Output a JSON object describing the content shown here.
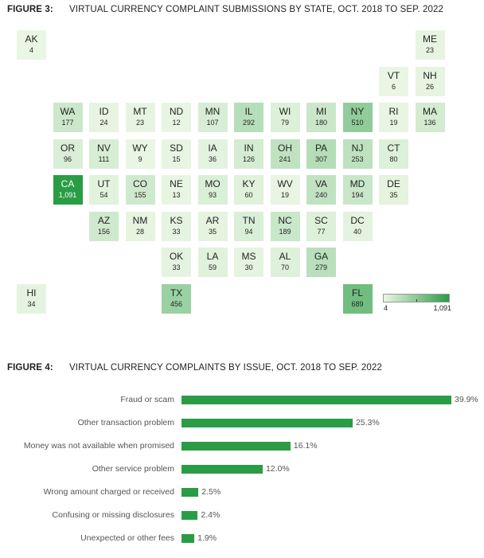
{
  "figure3": {
    "number": "FIGURE 3:",
    "title": "VIRTUAL CURRENCY COMPLAINT SUBMISSIONS  BY STATE, OCT. 2018 TO SEP. 2022",
    "legend": {
      "min": "4",
      "max": "1,091",
      "color_low": "#eaf6e4",
      "color_high": "#2a9c45"
    }
  },
  "chart_data": [
    {
      "type": "tile_map",
      "title": "VIRTUAL CURRENCY COMPLAINT SUBMISSIONS  BY STATE, OCT. 2018 TO SEP. 2022",
      "value_range": [
        4,
        1091
      ],
      "states": [
        {
          "abbr": "AK",
          "label": "4",
          "value": 4,
          "row": 0,
          "col": 0
        },
        {
          "abbr": "ME",
          "label": "23",
          "value": 23,
          "row": 0,
          "col": 11
        },
        {
          "abbr": "VT",
          "label": "6",
          "value": 6,
          "row": 1,
          "col": 10
        },
        {
          "abbr": "NH",
          "label": "26",
          "value": 26,
          "row": 1,
          "col": 11
        },
        {
          "abbr": "WA",
          "label": "177",
          "value": 177,
          "row": 2,
          "col": 1
        },
        {
          "abbr": "ID",
          "label": "24",
          "value": 24,
          "row": 2,
          "col": 2
        },
        {
          "abbr": "MT",
          "label": "23",
          "value": 23,
          "row": 2,
          "col": 3
        },
        {
          "abbr": "ND",
          "label": "12",
          "value": 12,
          "row": 2,
          "col": 4
        },
        {
          "abbr": "MN",
          "label": "107",
          "value": 107,
          "row": 2,
          "col": 5
        },
        {
          "abbr": "IL",
          "label": "292",
          "value": 292,
          "row": 2,
          "col": 6
        },
        {
          "abbr": "WI",
          "label": "79",
          "value": 79,
          "row": 2,
          "col": 7
        },
        {
          "abbr": "MI",
          "label": "180",
          "value": 180,
          "row": 2,
          "col": 8
        },
        {
          "abbr": "NY",
          "label": "510",
          "value": 510,
          "row": 2,
          "col": 9
        },
        {
          "abbr": "RI",
          "label": "19",
          "value": 19,
          "row": 2,
          "col": 10
        },
        {
          "abbr": "MA",
          "label": "136",
          "value": 136,
          "row": 2,
          "col": 11
        },
        {
          "abbr": "OR",
          "label": "96",
          "value": 96,
          "row": 3,
          "col": 1
        },
        {
          "abbr": "NV",
          "label": "111",
          "value": 111,
          "row": 3,
          "col": 2
        },
        {
          "abbr": "WY",
          "label": "9",
          "value": 9,
          "row": 3,
          "col": 3
        },
        {
          "abbr": "SD",
          "label": "15",
          "value": 15,
          "row": 3,
          "col": 4
        },
        {
          "abbr": "IA",
          "label": "36",
          "value": 36,
          "row": 3,
          "col": 5
        },
        {
          "abbr": "IN",
          "label": "126",
          "value": 126,
          "row": 3,
          "col": 6
        },
        {
          "abbr": "OH",
          "label": "241",
          "value": 241,
          "row": 3,
          "col": 7
        },
        {
          "abbr": "PA",
          "label": "307",
          "value": 307,
          "row": 3,
          "col": 8
        },
        {
          "abbr": "NJ",
          "label": "253",
          "value": 253,
          "row": 3,
          "col": 9
        },
        {
          "abbr": "CT",
          "label": "80",
          "value": 80,
          "row": 3,
          "col": 10
        },
        {
          "abbr": "CA",
          "label": "1,091",
          "value": 1091,
          "row": 4,
          "col": 1
        },
        {
          "abbr": "UT",
          "label": "54",
          "value": 54,
          "row": 4,
          "col": 2
        },
        {
          "abbr": "CO",
          "label": "155",
          "value": 155,
          "row": 4,
          "col": 3
        },
        {
          "abbr": "NE",
          "label": "13",
          "value": 13,
          "row": 4,
          "col": 4
        },
        {
          "abbr": "MO",
          "label": "93",
          "value": 93,
          "row": 4,
          "col": 5
        },
        {
          "abbr": "KY",
          "label": "60",
          "value": 60,
          "row": 4,
          "col": 6
        },
        {
          "abbr": "WV",
          "label": "19",
          "value": 19,
          "row": 4,
          "col": 7
        },
        {
          "abbr": "VA",
          "label": "240",
          "value": 240,
          "row": 4,
          "col": 8
        },
        {
          "abbr": "MD",
          "label": "194",
          "value": 194,
          "row": 4,
          "col": 9
        },
        {
          "abbr": "DE",
          "label": "35",
          "value": 35,
          "row": 4,
          "col": 10
        },
        {
          "abbr": "AZ",
          "label": "156",
          "value": 156,
          "row": 5,
          "col": 2
        },
        {
          "abbr": "NM",
          "label": "28",
          "value": 28,
          "row": 5,
          "col": 3
        },
        {
          "abbr": "KS",
          "label": "33",
          "value": 33,
          "row": 5,
          "col": 4
        },
        {
          "abbr": "AR",
          "label": "35",
          "value": 35,
          "row": 5,
          "col": 5
        },
        {
          "abbr": "TN",
          "label": "94",
          "value": 94,
          "row": 5,
          "col": 6
        },
        {
          "abbr": "NC",
          "label": "189",
          "value": 189,
          "row": 5,
          "col": 7
        },
        {
          "abbr": "SC",
          "label": "77",
          "value": 77,
          "row": 5,
          "col": 8
        },
        {
          "abbr": "DC",
          "label": "40",
          "value": 40,
          "row": 5,
          "col": 9
        },
        {
          "abbr": "OK",
          "label": "33",
          "value": 33,
          "row": 6,
          "col": 4
        },
        {
          "abbr": "LA",
          "label": "59",
          "value": 59,
          "row": 6,
          "col": 5
        },
        {
          "abbr": "MS",
          "label": "30",
          "value": 30,
          "row": 6,
          "col": 6
        },
        {
          "abbr": "AL",
          "label": "70",
          "value": 70,
          "row": 6,
          "col": 7
        },
        {
          "abbr": "GA",
          "label": "279",
          "value": 279,
          "row": 6,
          "col": 8
        },
        {
          "abbr": "HI",
          "label": "34",
          "value": 34,
          "row": 7,
          "col": 0
        },
        {
          "abbr": "TX",
          "label": "456",
          "value": 456,
          "row": 7,
          "col": 4
        },
        {
          "abbr": "FL",
          "label": "689",
          "value": 689,
          "row": 7,
          "col": 9
        }
      ]
    },
    {
      "type": "bar",
      "orientation": "horizontal",
      "title": "VIRTUAL CURRENCY COMPLAINTS  BY ISSUE,  OCT. 2018 TO SEP.  2022",
      "categories": [
        "Fraud or scam",
        "Other transaction problem",
        "Money was not available when promised",
        "Other service problem",
        "Wrong amount charged or received",
        "Confusing or missing disclosures",
        "Unexpected or other fees"
      ],
      "values": [
        39.9,
        25.3,
        16.1,
        12.0,
        2.5,
        2.4,
        1.9
      ],
      "labels": [
        "39.9%",
        "25.3%",
        "16.1%",
        "12.0%",
        "2.5%",
        "2.4%",
        "1.9%"
      ],
      "xlim": [
        0,
        39.9
      ],
      "bar_color": "#2a9c45"
    }
  ],
  "figure4": {
    "number": "FIGURE 4:",
    "title": "VIRTUAL CURRENCY COMPLAINTS  BY ISSUE,  OCT. 2018 TO SEP.  2022"
  }
}
